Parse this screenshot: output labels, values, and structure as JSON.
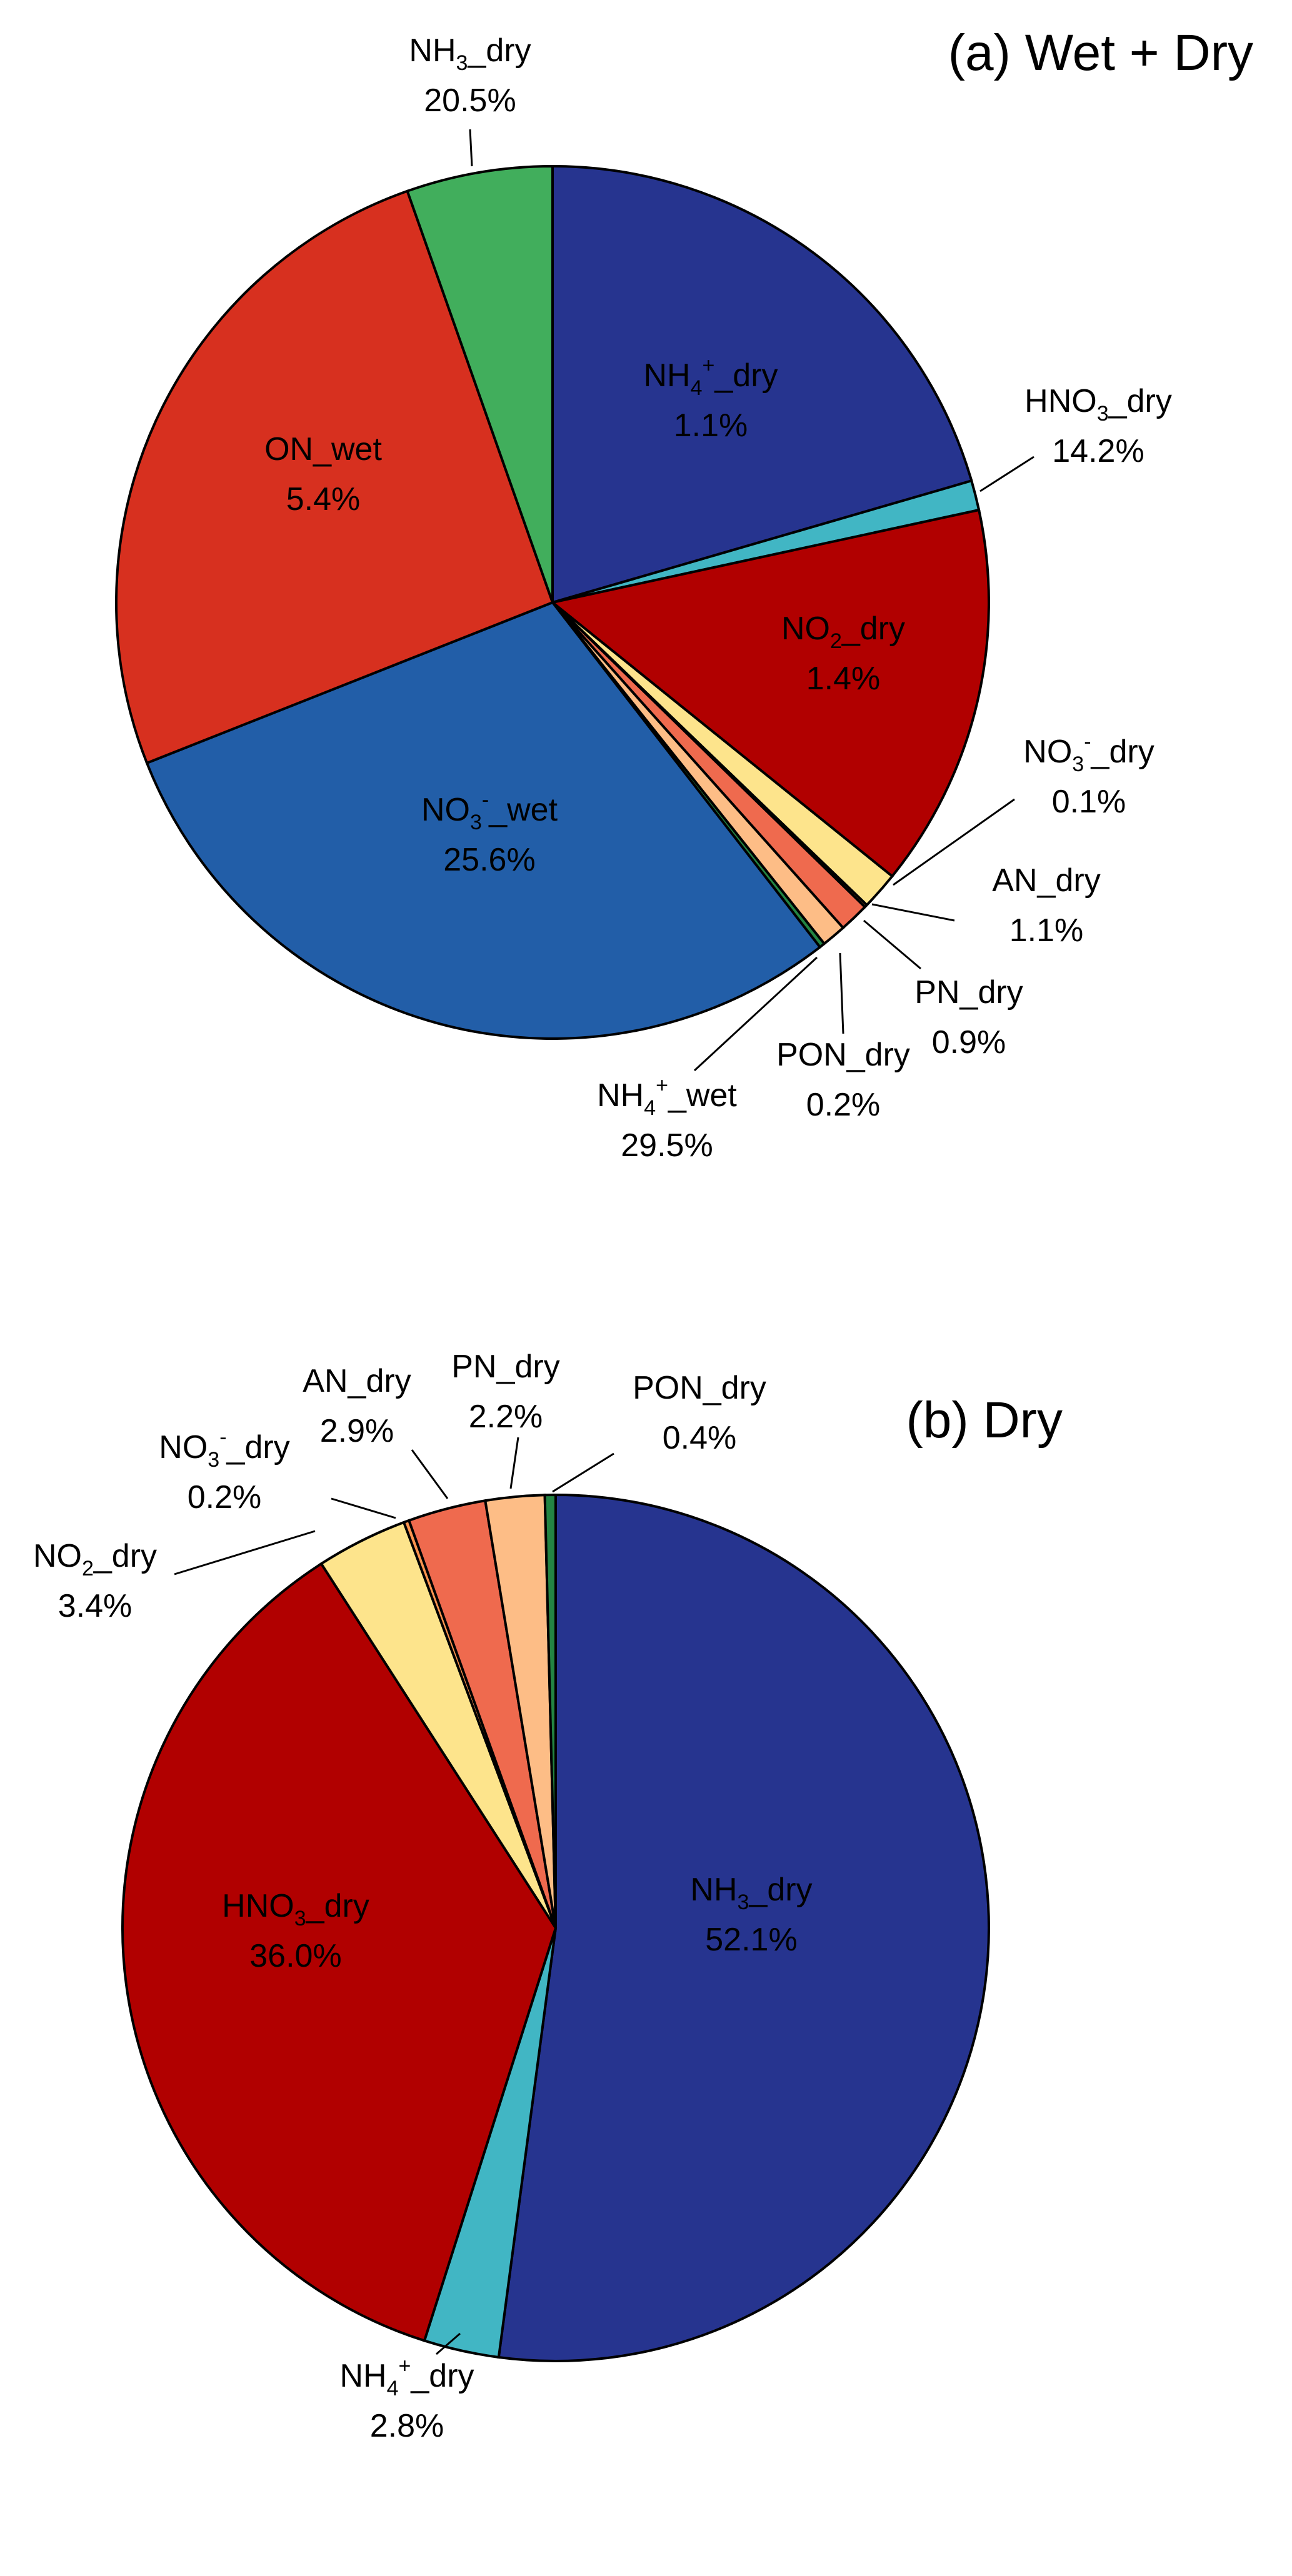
{
  "chart_data": [
    {
      "type": "pie",
      "title": "(a) Wet + Dry",
      "start": "top",
      "direction": "clockwise",
      "slices": [
        {
          "name": "NH3_dry",
          "parts": [
            {
              "t": "NH"
            },
            {
              "t": "3",
              "k": "sub"
            },
            {
              "t": "_dry"
            }
          ],
          "value": 20.5,
          "label": "20.5%",
          "color": "#26348f"
        },
        {
          "name": "NH4+_dry",
          "parts": [
            {
              "t": "NH"
            },
            {
              "t": "4",
              "k": "sub"
            },
            {
              "t": "+",
              "k": "sup"
            },
            {
              "t": "_dry"
            }
          ],
          "value": 1.1,
          "label": "1.1%",
          "color": "#41b6c4"
        },
        {
          "name": "HNO3_dry",
          "parts": [
            {
              "t": "HNO"
            },
            {
              "t": "3",
              "k": "sub"
            },
            {
              "t": "_dry"
            }
          ],
          "value": 14.2,
          "label": "14.2%",
          "color": "#b10000"
        },
        {
          "name": "NO2_dry",
          "parts": [
            {
              "t": "NO"
            },
            {
              "t": "2",
              "k": "sub"
            },
            {
              "t": "_dry"
            }
          ],
          "value": 1.4,
          "label": "1.4%",
          "color": "#fde48c"
        },
        {
          "name": "NO3-_dry",
          "parts": [
            {
              "t": "NO"
            },
            {
              "t": "3",
              "k": "sub"
            },
            {
              "t": "-",
              "k": "sup"
            },
            {
              "t": "_dry"
            }
          ],
          "value": 0.1,
          "label": "0.1%",
          "color": "#fb9450"
        },
        {
          "name": "AN_dry",
          "parts": [
            {
              "t": "AN_dry"
            }
          ],
          "value": 1.1,
          "label": "1.1%",
          "color": "#ef6a4e"
        },
        {
          "name": "PN_dry",
          "parts": [
            {
              "t": "PN_dry"
            }
          ],
          "value": 0.9,
          "label": "0.9%",
          "color": "#fdbd86"
        },
        {
          "name": "PON_dry",
          "parts": [
            {
              "t": "PON_dry"
            }
          ],
          "value": 0.2,
          "label": "0.2%",
          "color": "#238443"
        },
        {
          "name": "NH4+_wet",
          "parts": [
            {
              "t": "NH"
            },
            {
              "t": "4",
              "k": "sub"
            },
            {
              "t": "+",
              "k": "sup"
            },
            {
              "t": "_wet"
            }
          ],
          "value": 29.5,
          "label": "29.5%",
          "color": "#225ea8"
        },
        {
          "name": "NO3-_wet",
          "parts": [
            {
              "t": "NO"
            },
            {
              "t": "3",
              "k": "sub"
            },
            {
              "t": "-",
              "k": "sup"
            },
            {
              "t": "_wet"
            }
          ],
          "value": 25.6,
          "label": "25.6%",
          "color": "#d7301f"
        },
        {
          "name": "ON_wet",
          "parts": [
            {
              "t": "ON_wet"
            }
          ],
          "value": 5.4,
          "label": "5.4%",
          "color": "#41ae5c"
        }
      ]
    },
    {
      "type": "pie",
      "title": "(b) Dry",
      "start": "top",
      "direction": "clockwise",
      "slices": [
        {
          "name": "NH3_dry",
          "parts": [
            {
              "t": "NH"
            },
            {
              "t": "3",
              "k": "sub"
            },
            {
              "t": "_dry"
            }
          ],
          "value": 52.1,
          "label": "52.1%",
          "color": "#26348f"
        },
        {
          "name": "NH4+_dry",
          "parts": [
            {
              "t": "NH"
            },
            {
              "t": "4",
              "k": "sub"
            },
            {
              "t": "+",
              "k": "sup"
            },
            {
              "t": "_dry"
            }
          ],
          "value": 2.8,
          "label": "2.8%",
          "color": "#41b6c4"
        },
        {
          "name": "HNO3_dry",
          "parts": [
            {
              "t": "HNO"
            },
            {
              "t": "3",
              "k": "sub"
            },
            {
              "t": "_dry"
            }
          ],
          "value": 36.0,
          "label": "36.0%",
          "color": "#b10000"
        },
        {
          "name": "NO2_dry",
          "parts": [
            {
              "t": "NO"
            },
            {
              "t": "2",
              "k": "sub"
            },
            {
              "t": "_dry"
            }
          ],
          "value": 3.4,
          "label": "3.4%",
          "color": "#fde48c"
        },
        {
          "name": "NO3-_dry",
          "parts": [
            {
              "t": "NO"
            },
            {
              "t": "3",
              "k": "sub"
            },
            {
              "t": "-",
              "k": "sup"
            },
            {
              "t": "_dry"
            }
          ],
          "value": 0.2,
          "label": "0.2%",
          "color": "#fb9450"
        },
        {
          "name": "AN_dry",
          "parts": [
            {
              "t": "AN_dry"
            }
          ],
          "value": 2.9,
          "label": "2.9%",
          "color": "#ef6a4e"
        },
        {
          "name": "PN_dry",
          "parts": [
            {
              "t": "PN_dry"
            }
          ],
          "value": 2.2,
          "label": "2.2%",
          "color": "#fdbd86"
        },
        {
          "name": "PON_dry",
          "parts": [
            {
              "t": "PON_dry"
            }
          ],
          "value": 0.4,
          "label": "0.4%",
          "color": "#238443"
        }
      ]
    }
  ]
}
